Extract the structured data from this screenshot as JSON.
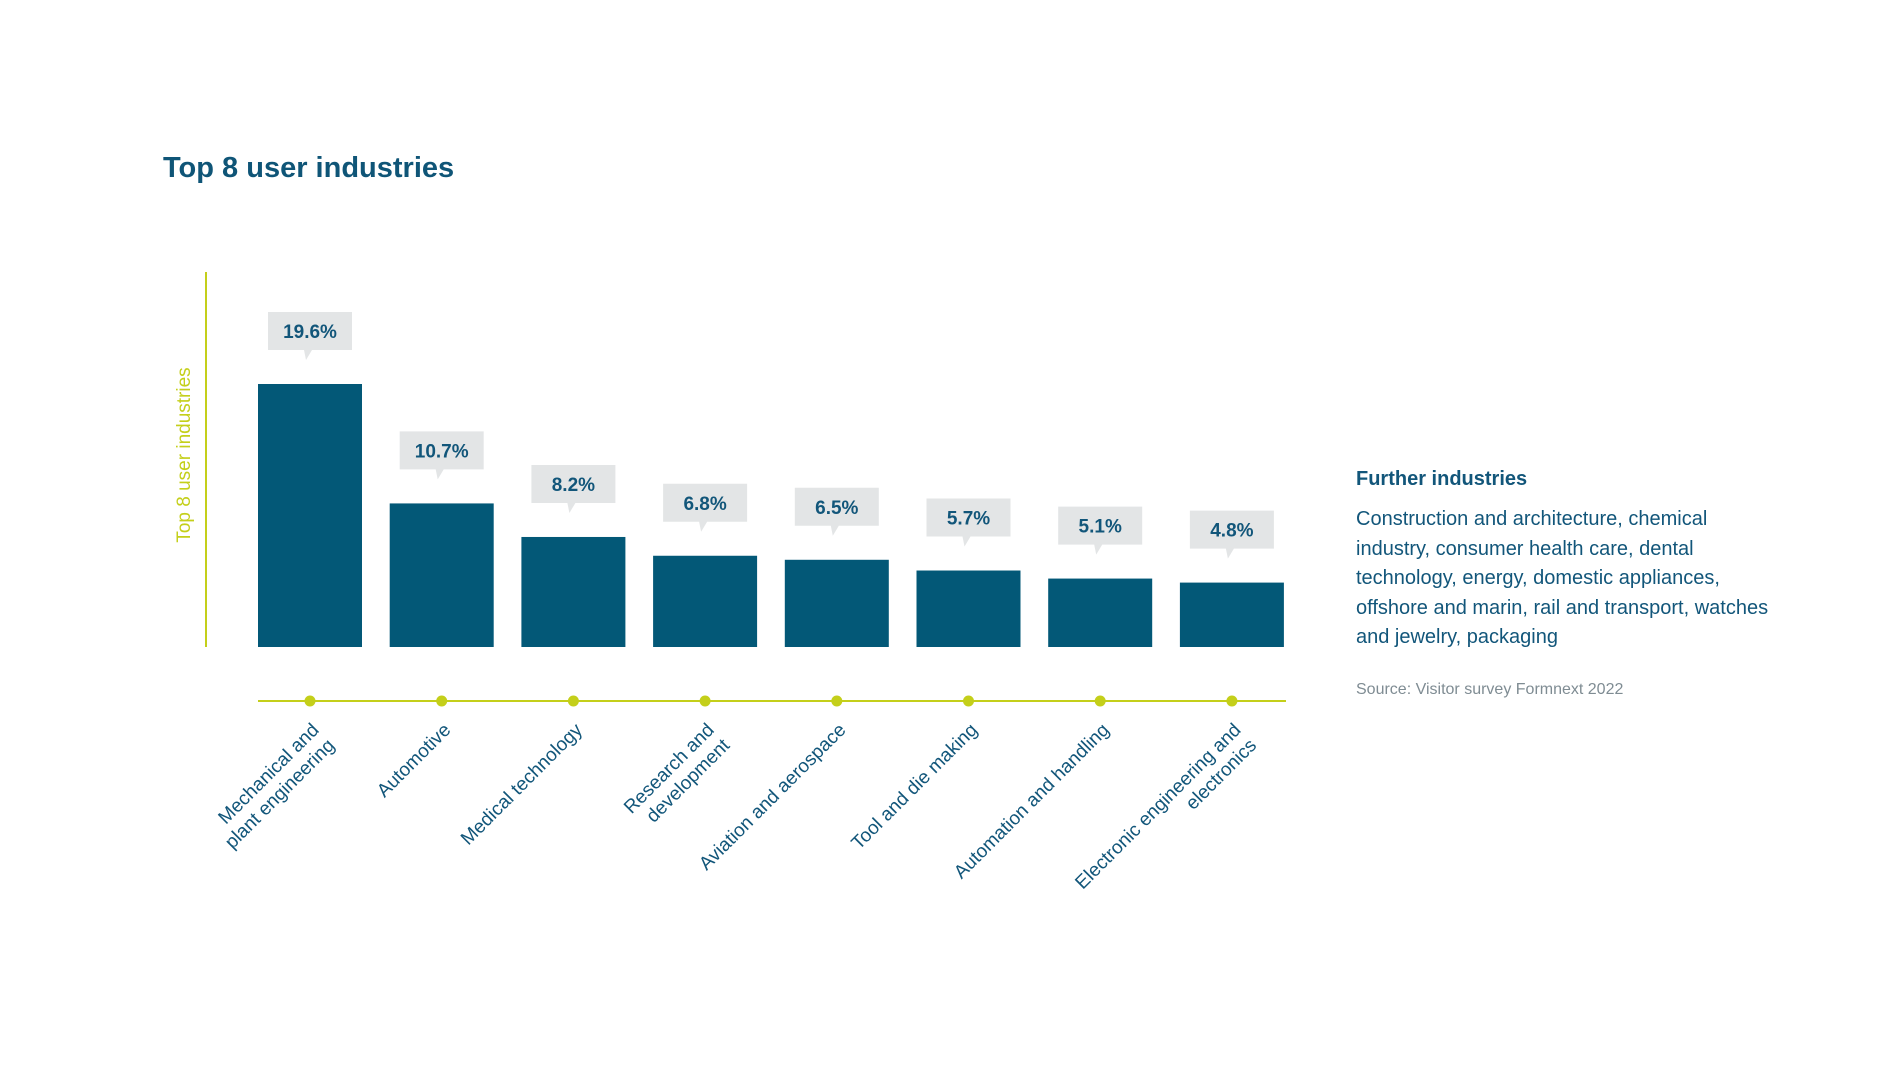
{
  "chart_data": {
    "type": "bar",
    "title": "Top 8 user industries",
    "ylabel": "Top 8 user industries",
    "xlabel": "",
    "categories": [
      [
        "Mechanical and",
        "plant engineering"
      ],
      [
        "Automotive"
      ],
      [
        "Medical technology"
      ],
      [
        "Research and",
        "development"
      ],
      [
        "Aviation and aerospace"
      ],
      [
        "Tool and die making"
      ],
      [
        "Automation and handling"
      ],
      [
        "Electronic engineering and",
        "electronics"
      ]
    ],
    "values": [
      19.6,
      10.7,
      8.2,
      6.8,
      6.5,
      5.7,
      5.1,
      4.8
    ],
    "value_labels": [
      "19.6%",
      "10.7%",
      "8.2%",
      "6.8%",
      "6.5%",
      "5.7%",
      "5.1%",
      "4.8%"
    ],
    "ylim": [
      0,
      19.6
    ],
    "grid": false,
    "colors": {
      "bar": "#035877",
      "axis": "#c4cf1a",
      "callout": "#e3e5e6",
      "text": "#12567a"
    }
  },
  "side_panel": {
    "title": "Further industries",
    "text": "Construction and architecture, chemical industry, consumer health care, dental technology, energy, domestic appliances, offshore and marin, rail and transport, watches and jewelry, packaging",
    "source": "Source: Visitor survey Formnext 2022"
  }
}
